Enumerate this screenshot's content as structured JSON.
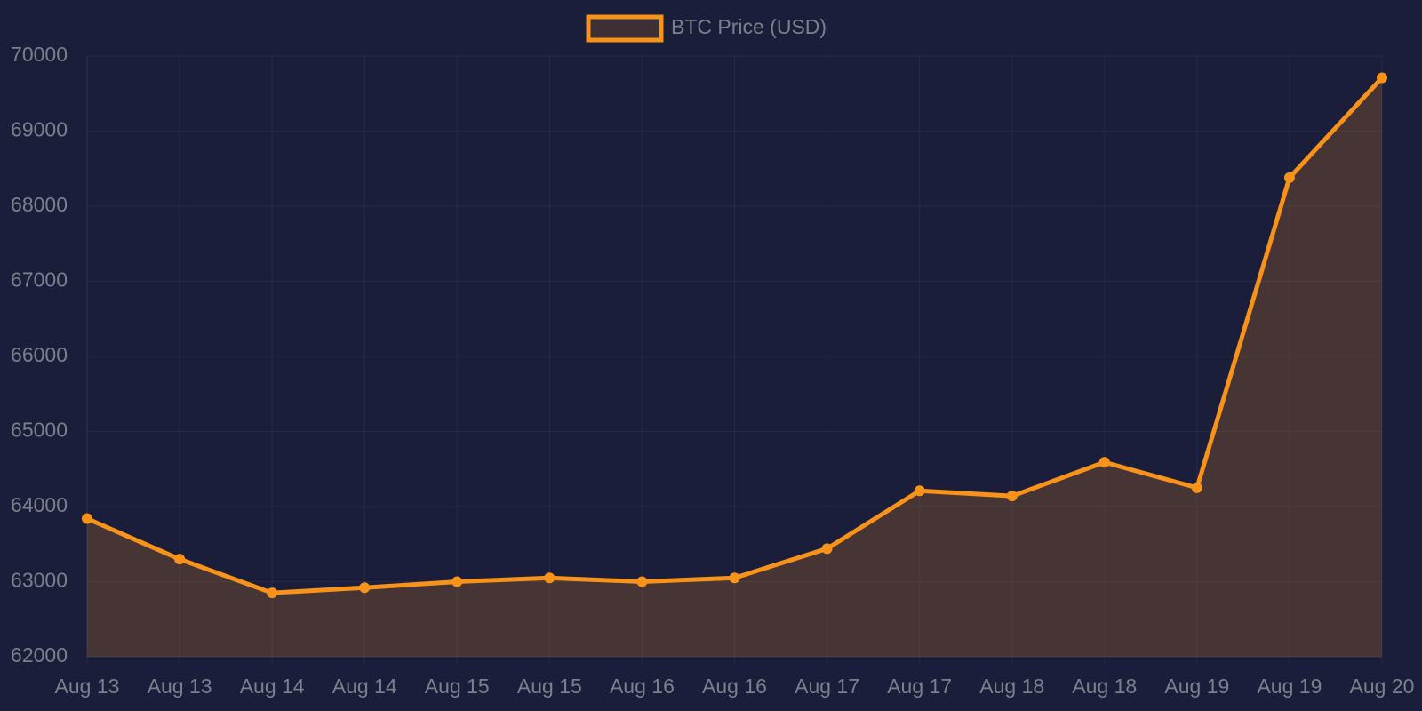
{
  "chart_data": {
    "type": "line",
    "categories": [
      "Aug 13",
      "Aug 13",
      "Aug 14",
      "Aug 14",
      "Aug 15",
      "Aug 15",
      "Aug 16",
      "Aug 16",
      "Aug 17",
      "Aug 17",
      "Aug 18",
      "Aug 18",
      "Aug 19",
      "Aug 19",
      "Aug 20"
    ],
    "series": [
      {
        "name": "BTC Price (USD)",
        "color": "#f7931a",
        "values": [
          63840,
          63300,
          62850,
          62920,
          63000,
          63050,
          63000,
          63050,
          63440,
          64210,
          64140,
          64590,
          64250,
          68380,
          69710
        ]
      }
    ],
    "ylim": [
      62000,
      70000
    ],
    "yticks": [
      62000,
      63000,
      64000,
      65000,
      66000,
      67000,
      68000,
      69000,
      70000
    ],
    "grid": true,
    "legend": "top",
    "fill": true
  }
}
